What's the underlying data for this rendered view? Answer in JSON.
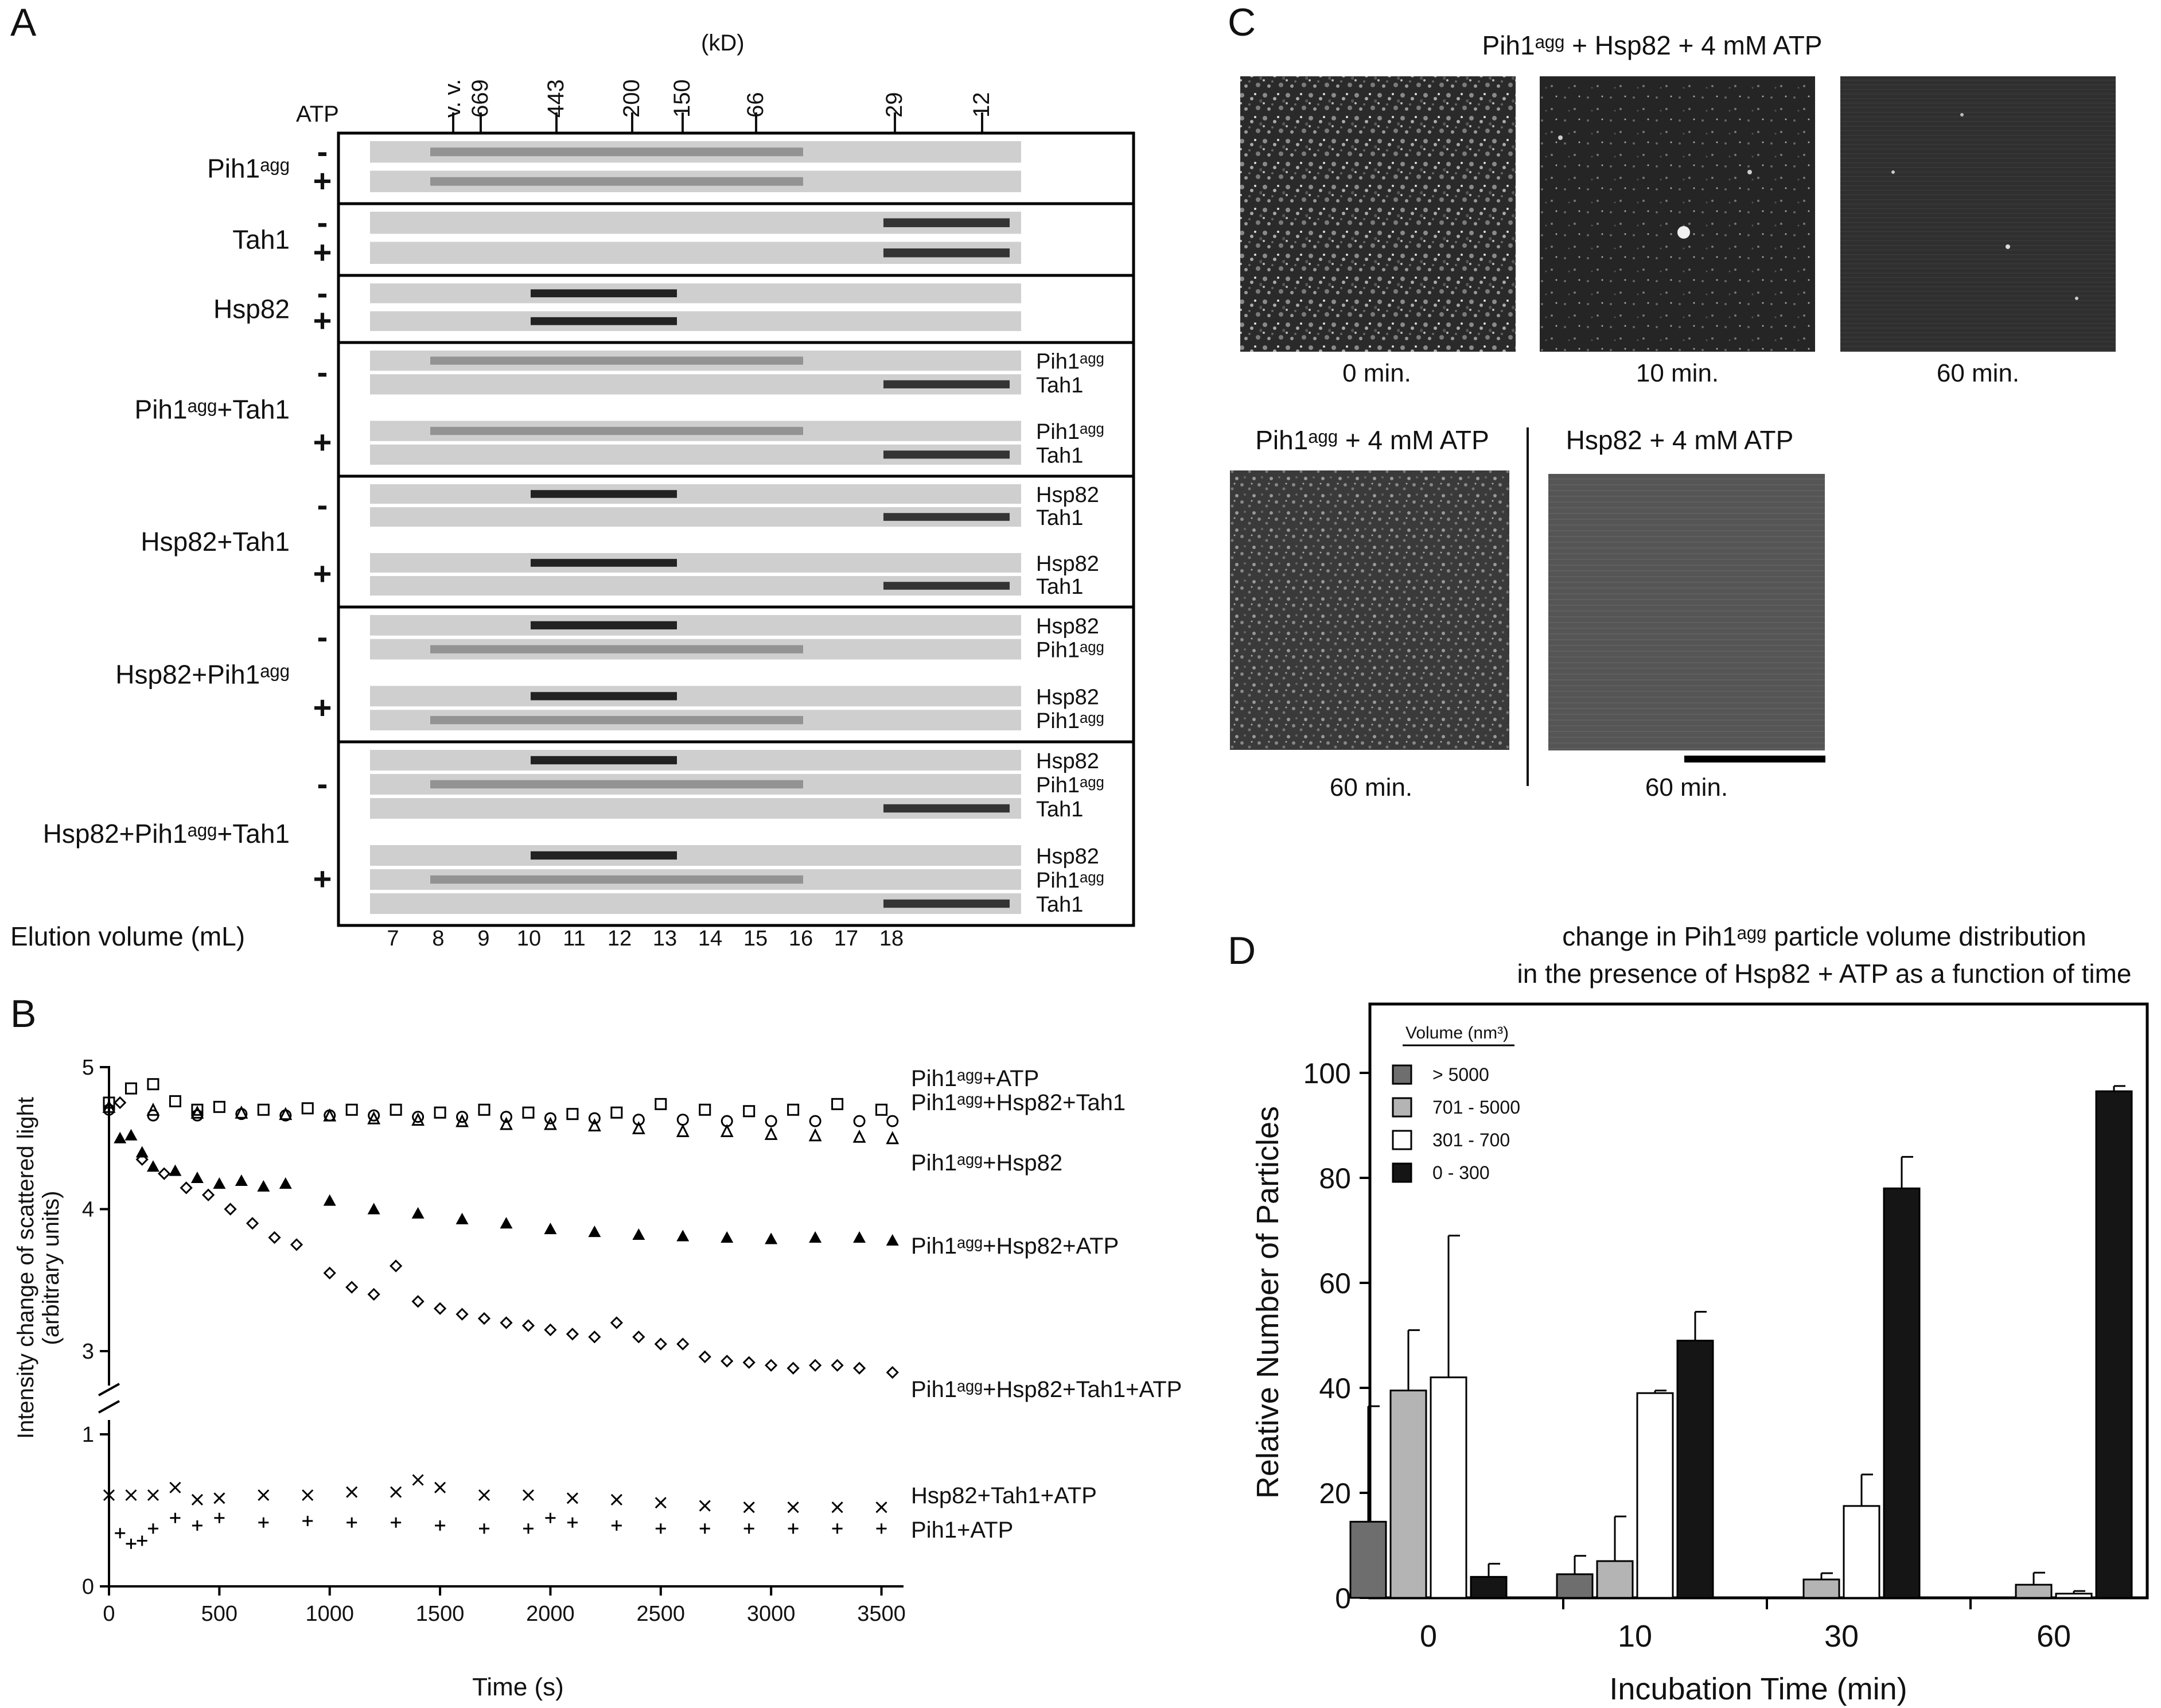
{
  "panel_labels": {
    "a": "A",
    "b": "B",
    "c": "C",
    "d": "D"
  },
  "panel_a": {
    "atp_label": "ATP",
    "kd_unit": "(kD)",
    "markers": [
      "v. v.",
      "669",
      "443",
      "200",
      "150",
      "66",
      "29",
      "12"
    ],
    "groups": [
      {
        "name": "Pih1ᵃᵍᵍ",
        "sublanes": [
          {
            "sign": "-",
            "labels": []
          },
          {
            "sign": "+",
            "labels": []
          }
        ]
      },
      {
        "name": "Tah1",
        "sublanes": [
          {
            "sign": "-",
            "labels": []
          },
          {
            "sign": "+",
            "labels": []
          }
        ]
      },
      {
        "name": "Hsp82",
        "sublanes": [
          {
            "sign": "-",
            "labels": []
          },
          {
            "sign": "+",
            "labels": []
          }
        ]
      },
      {
        "name": "Pih1ᵃᵍᵍ+Tah1",
        "sublanes": [
          {
            "sign": "-",
            "labels": [
              "Pih1ᵃᵍᵍ",
              "Tah1"
            ]
          },
          {
            "sign": "+",
            "labels": [
              "Pih1ᵃᵍᵍ",
              "Tah1"
            ]
          }
        ]
      },
      {
        "name": "Hsp82+Tah1",
        "sublanes": [
          {
            "sign": "-",
            "labels": [
              "Hsp82",
              "Tah1"
            ]
          },
          {
            "sign": "+",
            "labels": [
              "Hsp82",
              "Tah1"
            ]
          }
        ]
      },
      {
        "name": "Hsp82+Pih1ᵃᵍᵍ",
        "sublanes": [
          {
            "sign": "-",
            "labels": [
              "Hsp82",
              "Pih1ᵃᵍᵍ"
            ]
          },
          {
            "sign": "+",
            "labels": [
              "Hsp82",
              "Pih1ᵃᵍᵍ"
            ]
          }
        ]
      },
      {
        "name": "Hsp82+Pih1ᵃᵍᵍ+Tah1",
        "sublanes": [
          {
            "sign": "-",
            "labels": [
              "Hsp82",
              "Pih1ᵃᵍᵍ",
              "Tah1"
            ]
          },
          {
            "sign": "+",
            "labels": [
              "Hsp82",
              "Pih1ᵃᵍᵍ",
              "Tah1"
            ]
          }
        ]
      }
    ],
    "elution_label": "Elution volume (mL)",
    "fractions": [
      "7",
      "8",
      "9",
      "10",
      "11",
      "12",
      "13",
      "14",
      "15",
      "16",
      "17",
      "18"
    ]
  },
  "panel_b": {
    "ylabel_line1": "Intensity change of scattered light",
    "ylabel_line2": "(arbitrary units)",
    "xlabel": "Time (s)",
    "xticks": [
      "0",
      "500",
      "1000",
      "1500",
      "2000",
      "2500",
      "3000",
      "3500"
    ],
    "yticks_upper": [
      "3",
      "4",
      "5"
    ],
    "yticks_lower": [
      "0",
      "1"
    ],
    "series_labels": [
      "Pih1ᵃᵍᵍ+ATP",
      "Pih1ᵃᵍᵍ+Hsp82+Tah1",
      "Pih1ᵃᵍᵍ+Hsp82",
      "Pih1ᵃᵍᵍ+Hsp82+ATP",
      "Pih1ᵃᵍᵍ+Hsp82+Tah1+ATP",
      "Hsp82+Tah1+ATP",
      "Pih1+ATP"
    ]
  },
  "panel_c": {
    "title_top": "Pih1ᵃᵍᵍ + Hsp82 + 4 mM ATP",
    "times_top": [
      "0 min.",
      "10 min.",
      "60 min."
    ],
    "title_bl": "Pih1ᵃᵍᵍ + 4 mM ATP",
    "title_br": "Hsp82 + 4 mM ATP",
    "time_bl": "60 min.",
    "time_br": "60 min."
  },
  "panel_d": {
    "title_line1": "change in Pih1ᵃᵍᵍ particle volume distribution",
    "title_line2": "in the presence of Hsp82 + ATP as a function of time",
    "legend_title": "Volume (nm³)",
    "legend": [
      {
        "label": "> 5000",
        "color": "#6e6e6e"
      },
      {
        "label": "701 - 5000",
        "color": "#b4b4b4"
      },
      {
        "label": "301 - 700",
        "color": "#ffffff"
      },
      {
        "label": "0 - 300",
        "color": "#151515"
      }
    ],
    "ylabel": "Relative Number of Particles",
    "xlabel": "Incubation Time (min)"
  },
  "chart_data": [
    {
      "type": "scatter",
      "xlabel": "Time (s)",
      "ylabel": "Intensity change of scattered light (arbitrary units)",
      "xlim": [
        0,
        3600
      ],
      "ylim": [
        0,
        5
      ],
      "series": [
        {
          "name": "Pih1ᵃᵍᵍ+ATP",
          "marker": "open-square",
          "x": [
            0,
            100,
            200,
            300,
            400,
            500,
            700,
            900,
            1100,
            1300,
            1500,
            1700,
            1900,
            2100,
            2300,
            2500,
            2700,
            2900,
            3100,
            3300,
            3500
          ],
          "y": [
            4.75,
            4.85,
            4.88,
            4.76,
            4.7,
            4.72,
            4.7,
            4.71,
            4.7,
            4.7,
            4.68,
            4.7,
            4.68,
            4.67,
            4.68,
            4.74,
            4.7,
            4.69,
            4.7,
            4.74,
            4.7
          ]
        },
        {
          "name": "Pih1ᵃᵍᵍ+Hsp82+Tah1",
          "marker": "open-circle",
          "x": [
            0,
            200,
            400,
            600,
            800,
            1000,
            1200,
            1400,
            1600,
            1800,
            2000,
            2200,
            2400,
            2600,
            2800,
            3000,
            3200,
            3400,
            3550
          ],
          "y": [
            4.7,
            4.66,
            4.66,
            4.67,
            4.66,
            4.66,
            4.66,
            4.65,
            4.65,
            4.65,
            4.64,
            4.64,
            4.63,
            4.63,
            4.62,
            4.62,
            4.62,
            4.62,
            4.62
          ]
        },
        {
          "name": "Pih1ᵃᵍᵍ+Hsp82",
          "marker": "open-triangle",
          "x": [
            0,
            200,
            400,
            600,
            800,
            1000,
            1200,
            1400,
            1600,
            1800,
            2000,
            2200,
            2400,
            2600,
            2800,
            3000,
            3200,
            3400,
            3550
          ],
          "y": [
            4.72,
            4.7,
            4.68,
            4.68,
            4.67,
            4.66,
            4.64,
            4.63,
            4.62,
            4.6,
            4.6,
            4.59,
            4.57,
            4.55,
            4.55,
            4.53,
            4.52,
            4.51,
            4.5
          ]
        },
        {
          "name": "Pih1ᵃᵍᵍ+Hsp82+ATP",
          "marker": "filled-triangle",
          "x": [
            50,
            100,
            150,
            200,
            300,
            400,
            500,
            600,
            700,
            800,
            1000,
            1200,
            1400,
            1600,
            1800,
            2000,
            2200,
            2400,
            2600,
            2800,
            3000,
            3200,
            3400,
            3550
          ],
          "y": [
            4.5,
            4.52,
            4.4,
            4.3,
            4.27,
            4.22,
            4.18,
            4.2,
            4.16,
            4.18,
            4.06,
            4.0,
            3.97,
            3.93,
            3.9,
            3.86,
            3.84,
            3.82,
            3.81,
            3.8,
            3.79,
            3.8,
            3.8,
            3.78
          ]
        },
        {
          "name": "Pih1ᵃᵍᵍ+Hsp82+Tah1+ATP",
          "marker": "open-diamond",
          "x": [
            50,
            150,
            250,
            350,
            450,
            550,
            650,
            750,
            850,
            1000,
            1100,
            1200,
            1300,
            1400,
            1500,
            1600,
            1700,
            1800,
            1900,
            2000,
            2100,
            2200,
            2300,
            2400,
            2500,
            2600,
            2700,
            2800,
            2900,
            3000,
            3100,
            3200,
            3300,
            3400,
            3550
          ],
          "y": [
            4.75,
            4.35,
            4.25,
            4.15,
            4.1,
            4.0,
            3.9,
            3.8,
            3.75,
            3.55,
            3.45,
            3.4,
            3.6,
            3.35,
            3.3,
            3.26,
            3.23,
            3.2,
            3.18,
            3.15,
            3.12,
            3.1,
            3.2,
            3.1,
            3.05,
            3.05,
            2.96,
            2.93,
            2.92,
            2.9,
            2.88,
            2.9,
            2.9,
            2.88,
            2.85
          ]
        },
        {
          "name": "Hsp82+Tah1+ATP",
          "marker": "x",
          "x": [
            0,
            100,
            200,
            300,
            400,
            500,
            700,
            900,
            1100,
            1300,
            1400,
            1500,
            1700,
            1900,
            2100,
            2300,
            2500,
            2700,
            2900,
            3100,
            3300,
            3500
          ],
          "y": [
            0.6,
            0.6,
            0.6,
            0.65,
            0.57,
            0.58,
            0.6,
            0.6,
            0.62,
            0.62,
            0.7,
            0.65,
            0.6,
            0.6,
            0.58,
            0.57,
            0.55,
            0.53,
            0.52,
            0.52,
            0.52,
            0.52
          ]
        },
        {
          "name": "Pih1+ATP",
          "marker": "plus",
          "x": [
            50,
            100,
            150,
            200,
            300,
            400,
            500,
            700,
            900,
            1100,
            1300,
            1500,
            1700,
            1900,
            2000,
            2100,
            2300,
            2500,
            2700,
            2900,
            3100,
            3300,
            3500
          ],
          "y": [
            0.35,
            0.28,
            0.3,
            0.38,
            0.45,
            0.4,
            0.45,
            0.42,
            0.43,
            0.42,
            0.42,
            0.4,
            0.38,
            0.38,
            0.45,
            0.42,
            0.4,
            0.38,
            0.38,
            0.38,
            0.38,
            0.38,
            0.38
          ]
        }
      ]
    },
    {
      "type": "bar",
      "title": "change in Pih1ᵃᵍᵍ particle volume distribution in the presence of Hsp82 + ATP as a function of time",
      "xlabel": "Incubation Time (min)",
      "ylabel": "Relative Number of Particles",
      "categories": [
        "0",
        "10",
        "30",
        "60"
      ],
      "ylim": [
        0,
        110
      ],
      "yticks": [
        0,
        20,
        40,
        60,
        80,
        100
      ],
      "series": [
        {
          "name": "> 5000",
          "values": [
            14.5,
            4.5,
            0,
            0
          ],
          "errors": [
            22,
            3.5,
            0,
            0
          ]
        },
        {
          "name": "701 - 5000",
          "values": [
            39.5,
            7,
            3.5,
            2.5
          ],
          "errors": [
            11.5,
            8.5,
            1.2,
            2.3
          ]
        },
        {
          "name": "301 - 700",
          "values": [
            42,
            39,
            17.5,
            0.8
          ],
          "errors": [
            27,
            0.5,
            6,
            0.5
          ]
        },
        {
          "name": "0 - 300",
          "values": [
            4,
            49,
            78,
            96.5
          ],
          "errors": [
            2.5,
            5.5,
            6,
            1
          ]
        }
      ]
    }
  ]
}
